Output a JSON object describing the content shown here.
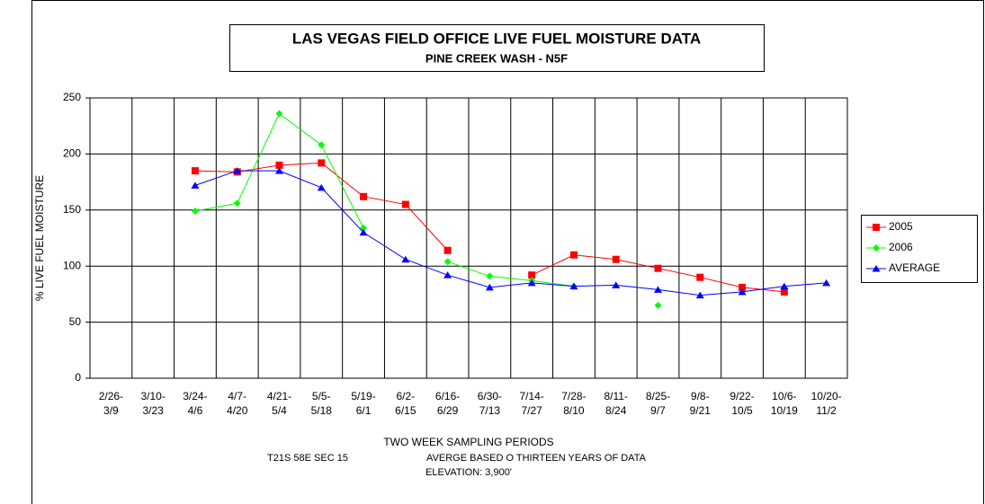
{
  "chart_data": {
    "type": "line",
    "title": "LAS VEGAS FIELD OFFICE  LIVE FUEL MOISTURE DATA",
    "subtitle": "PINE CREEK WASH - N5F",
    "x_label": "TWO WEEK SAMPLING PERIODS",
    "y_label": "% LIVE FUEL MOISTURE",
    "notes": [
      "T21S 58E SEC 15",
      "AVERGE BASED O THIRTEEN YEARS OF DATA",
      "ELEVATION: 3,900'"
    ],
    "categories": [
      "2/26-\n3/9",
      "3/10-\n3/23",
      "3/24-\n4/6",
      "4/7-\n4/20",
      "4/21-\n5/4",
      "5/5-\n5/18",
      "5/19-\n6/1",
      "6/2-\n6/15",
      "6/16-\n6/29",
      "6/30-\n7/13",
      "7/14-\n7/27",
      "7/28-\n8/10",
      "8/11-\n8/24",
      "8/25-\n9/7",
      "9/8-\n9/21",
      "9/22-\n10/5",
      "10/6-\n10/19",
      "10/20-\n11/2"
    ],
    "series": [
      {
        "name": "2005",
        "color": "#ff0000",
        "marker": "square",
        "values": [
          null,
          null,
          185,
          184,
          190,
          192,
          162,
          155,
          114,
          null,
          92,
          110,
          106,
          98,
          90,
          81,
          77,
          null
        ]
      },
      {
        "name": "2006",
        "color": "#00ff00",
        "marker": "diamond",
        "values": [
          null,
          null,
          149,
          156,
          236,
          208,
          134,
          null,
          104,
          91,
          87,
          82,
          null,
          65,
          null,
          null,
          null,
          null
        ]
      },
      {
        "name": "AVERAGE",
        "color": "#0000ff",
        "marker": "triangle",
        "values": [
          null,
          null,
          172,
          185,
          185,
          170,
          130,
          106,
          92,
          81,
          85,
          82,
          83,
          79,
          74,
          77,
          82,
          85
        ]
      }
    ],
    "ylim": [
      0,
      250
    ],
    "yticks": [
      0,
      50,
      100,
      150,
      200,
      250
    ],
    "grid": true,
    "legend": "right"
  }
}
